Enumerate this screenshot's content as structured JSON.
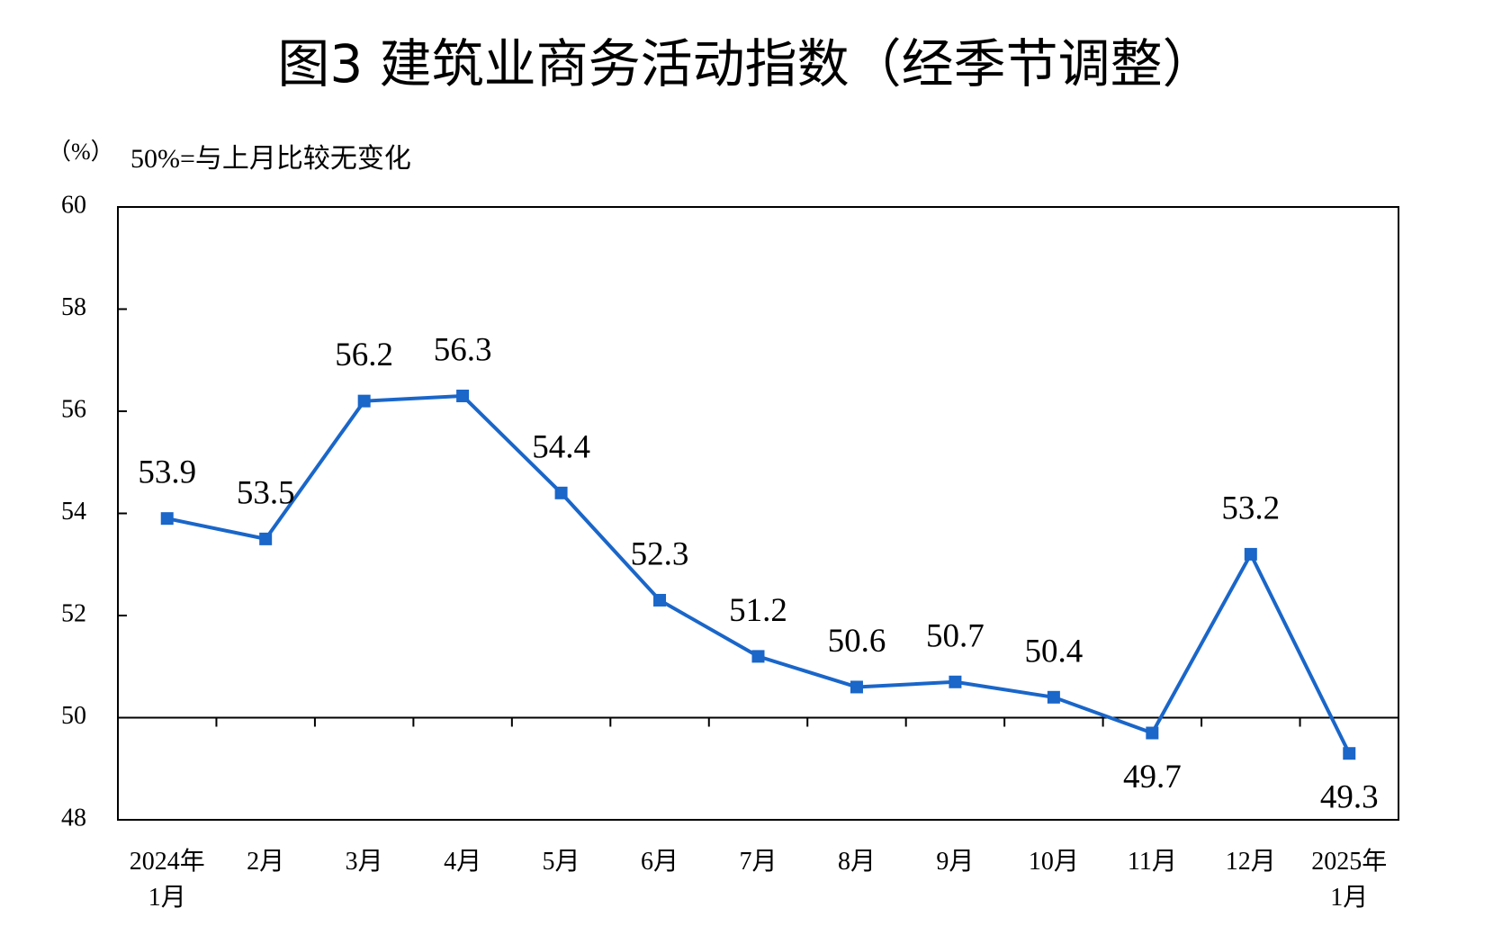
{
  "chart_data": {
    "type": "line",
    "title": "图3  建筑业商务活动指数（经季节调整）",
    "y_unit": "（%）",
    "annotation": "50%=与上月比较无变化",
    "categories": [
      "2024年\n1月",
      "2月",
      "3月",
      "4月",
      "5月",
      "6月",
      "7月",
      "8月",
      "9月",
      "10月",
      "11月",
      "12月",
      "2025年\n1月"
    ],
    "series": [
      {
        "name": "建筑业商务活动指数",
        "color": "#1a66c9",
        "values": [
          53.9,
          53.5,
          56.2,
          56.3,
          54.4,
          52.3,
          51.2,
          50.6,
          50.7,
          50.4,
          49.7,
          53.2,
          49.3
        ]
      }
    ],
    "ylim": [
      48,
      60
    ],
    "yticks": [
      48,
      50,
      52,
      54,
      56,
      58,
      60
    ],
    "reference_line": 50,
    "legend": false
  }
}
